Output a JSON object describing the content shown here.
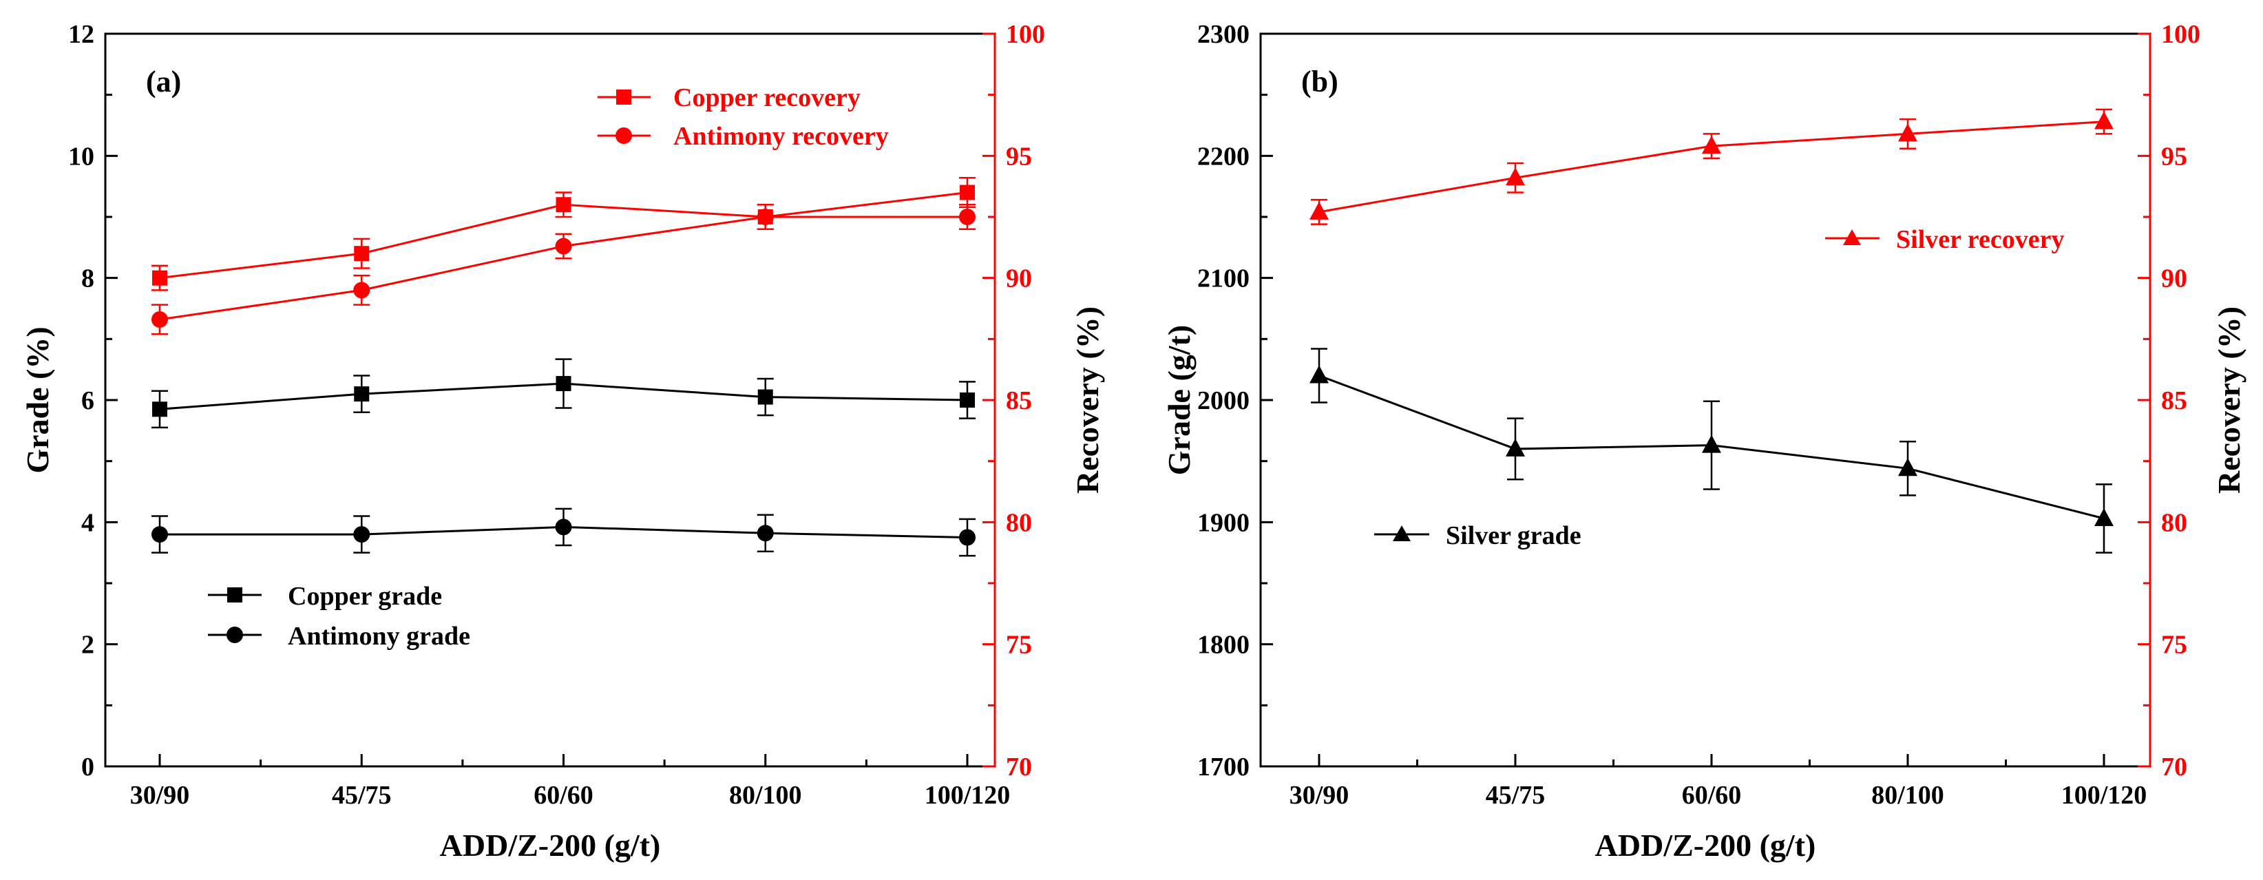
{
  "colors": {
    "left": "#000000",
    "right": "#ff0000"
  },
  "chart_data": [
    {
      "type": "line",
      "panel_label": "(a)",
      "categories": [
        "30/90",
        "45/75",
        "60/60",
        "80/100",
        "100/120"
      ],
      "xlabel": "ADD/Z-200 (g/t)",
      "ylabel_left": "Grade (%)",
      "ylabel_right": "Recovery (%)",
      "ylim_left": [
        0,
        12
      ],
      "yticks_left": [
        "0",
        "2",
        "4",
        "6",
        "8",
        "10",
        "12"
      ],
      "ylim_right": [
        70,
        100
      ],
      "yticks_right": [
        "70",
        "75",
        "80",
        "85",
        "90",
        "95",
        "100"
      ],
      "series": [
        {
          "name": "Copper recovery",
          "axis": "right",
          "marker": "square",
          "color": "#ff0000",
          "values": [
            90.0,
            91.0,
            93.0,
            92.5,
            93.5
          ],
          "errors": [
            0.5,
            0.6,
            0.5,
            0.5,
            0.6
          ]
        },
        {
          "name": "Antimony recovery",
          "axis": "right",
          "marker": "circle",
          "color": "#ff0000",
          "values": [
            88.3,
            89.5,
            91.3,
            92.5,
            92.5
          ],
          "errors": [
            0.6,
            0.6,
            0.5,
            0.5,
            0.5
          ]
        },
        {
          "name": "Copper grade",
          "axis": "left",
          "marker": "square",
          "color": "#000000",
          "values": [
            5.85,
            6.1,
            6.27,
            6.05,
            6.0
          ],
          "errors": [
            0.3,
            0.3,
            0.4,
            0.3,
            0.3
          ]
        },
        {
          "name": "Antimony grade",
          "axis": "left",
          "marker": "circle",
          "color": "#000000",
          "values": [
            3.8,
            3.8,
            3.92,
            3.82,
            3.75
          ],
          "errors": [
            0.3,
            0.3,
            0.3,
            0.3,
            0.3
          ]
        }
      ],
      "legends": [
        {
          "position": "top-right",
          "entries": [
            "Copper recovery",
            "Antimony recovery"
          ]
        },
        {
          "position": "bottom-left",
          "entries": [
            "Copper grade",
            "Antimony grade"
          ]
        }
      ]
    },
    {
      "type": "line",
      "panel_label": "(b)",
      "categories": [
        "30/90",
        "45/75",
        "60/60",
        "80/100",
        "100/120"
      ],
      "xlabel": "ADD/Z-200 (g/t)",
      "ylabel_left": "Grade (g/t)",
      "ylabel_right": "Recovery (%)",
      "ylim_left": [
        1700,
        2300
      ],
      "yticks_left": [
        "1700",
        "1800",
        "1900",
        "2000",
        "2100",
        "2200",
        "2300"
      ],
      "ylim_right": [
        70,
        100
      ],
      "yticks_right": [
        "70",
        "75",
        "80",
        "85",
        "90",
        "95",
        "100"
      ],
      "series": [
        {
          "name": "Silver recovery",
          "axis": "right",
          "marker": "triangle",
          "color": "#ff0000",
          "values": [
            92.7,
            94.1,
            95.4,
            95.9,
            96.4
          ],
          "errors": [
            0.5,
            0.6,
            0.5,
            0.6,
            0.5
          ]
        },
        {
          "name": "Silver grade",
          "axis": "left",
          "marker": "triangle",
          "color": "#000000",
          "values": [
            2020,
            1960,
            1963,
            1944,
            1903
          ],
          "errors": [
            22,
            25,
            36,
            22,
            28
          ]
        }
      ],
      "legends": [
        {
          "position": "right",
          "entries": [
            "Silver recovery"
          ]
        },
        {
          "position": "left",
          "entries": [
            "Silver grade"
          ]
        }
      ]
    }
  ]
}
